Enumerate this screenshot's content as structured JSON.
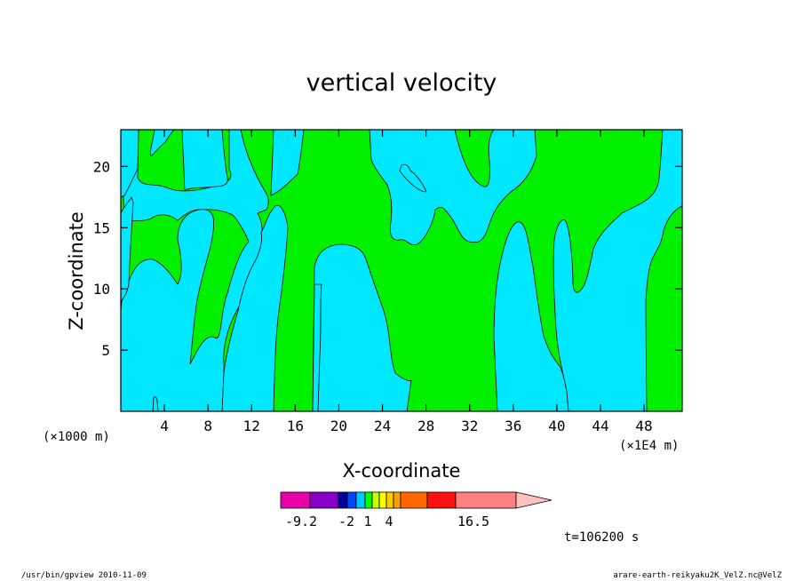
{
  "chart_data": {
    "type": "heatmap",
    "title": "vertical velocity",
    "xlabel": "X-coordinate",
    "ylabel": "Z-coordinate",
    "x_unit_left": "(×1000 m)",
    "x_unit_right": "(×1E4 m)",
    "xlim": [
      0,
      51.5
    ],
    "ylim": [
      0,
      23
    ],
    "x_ticks": [
      4,
      8,
      12,
      16,
      20,
      24,
      28,
      32,
      36,
      40,
      44,
      48
    ],
    "y_ticks": [
      5,
      10,
      15,
      20
    ],
    "colors": {
      "positive": "#00f000",
      "negative": "#00e8ff",
      "contour": "#000000"
    },
    "colorbar": {
      "tick_labels": [
        "-9.2",
        "-2",
        "1",
        "4",
        "16.5"
      ],
      "colors": [
        "#e800a8",
        "#8800c8",
        "#0000a0",
        "#0048ff",
        "#00c8ff",
        "#00ff00",
        "#c8ff00",
        "#ffff00",
        "#ffc800",
        "#ffa000",
        "#ff6800",
        "#ff1010",
        "#ff8080"
      ],
      "extend_color": "#ffc0c0"
    },
    "time_label": "t=106200 s"
  },
  "footer": {
    "left": "/usr/bin/gpview   2010-11-09",
    "right": "arare-earth-reikyaku2K_VelZ.nc@VelZ"
  }
}
